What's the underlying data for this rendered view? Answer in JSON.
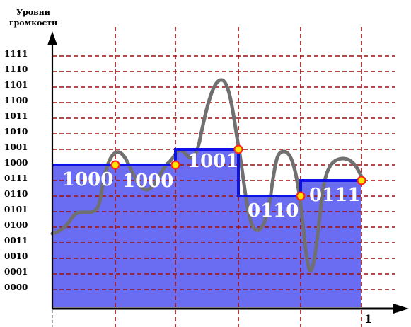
{
  "title_lines": [
    "Уровни",
    "громкости"
  ],
  "levels": [
    "0000",
    "0001",
    "0010",
    "0011",
    "0100",
    "0101",
    "0110",
    "0111",
    "1000",
    "1001",
    "1010",
    "1011",
    "1100",
    "1101",
    "1110",
    "1111"
  ],
  "x_end_label": "1",
  "steps": [
    {
      "level": 8,
      "code": "1000"
    },
    {
      "level": 8,
      "code": "1000"
    },
    {
      "level": 9,
      "code": "1001"
    },
    {
      "level": 6,
      "code": "0110"
    },
    {
      "level": 7,
      "code": "0111"
    }
  ],
  "colors": {
    "fill": "#6a6cf2",
    "step_line": "#1010e8",
    "signal": "#707070",
    "grid": "#9a1111",
    "sample_fill": "#ffe400",
    "sample_stroke": "#ff2020"
  }
}
